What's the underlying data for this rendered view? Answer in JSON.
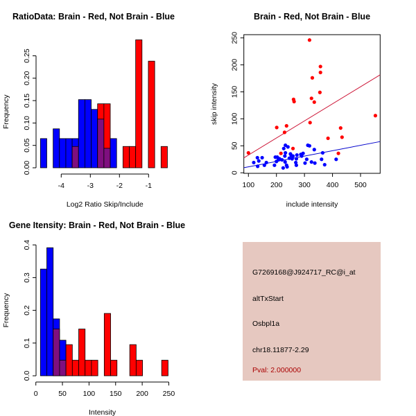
{
  "chart_data": [
    {
      "type": "bar",
      "subtype": "overlaid-histogram",
      "title": "RatioData: Brain - Red, Not Brain - Blue",
      "xlabel": "Log2 Ratio Skip/Include",
      "ylabel": "Frequency",
      "xticks": [
        "-4",
        "-3",
        "-2",
        "-1"
      ],
      "xtick_values": [
        -4,
        -3,
        -2,
        -1
      ],
      "yticks": [
        "0.00",
        "0.05",
        "0.10",
        "0.15",
        "0.20",
        "0.25"
      ],
      "ytick_values": [
        0,
        0.05,
        0.1,
        0.15,
        0.2,
        0.25
      ],
      "xlim": [
        -4.86,
        -0.15
      ],
      "bin_start": -4.714,
      "bin_width": 0.218,
      "series": [
        {
          "name": "Not Brain",
          "color": "#0000ff",
          "values": [
            0.0652,
            0,
            0.087,
            0.0652,
            0.0652,
            0.0652,
            0.1522,
            0.1522,
            0.1304,
            0.1087,
            0.0435,
            0.0652,
            0,
            0,
            0,
            0,
            0,
            0,
            0,
            0
          ]
        },
        {
          "name": "Brain",
          "color": "#ff0000",
          "values": [
            0,
            0,
            0,
            0,
            0,
            0.0476,
            0,
            0,
            0,
            0.1429,
            0.1429,
            0,
            0,
            0.0476,
            0.0476,
            0.2857,
            0,
            0.2381,
            0,
            0.0476
          ]
        }
      ],
      "overlap_color": "#7f0f7f"
    },
    {
      "type": "scatter",
      "title": "Brain - Red, Not Brain - Blue",
      "xlabel": "include intensity",
      "ylabel": "skip intensity",
      "xticks": [
        "100",
        "200",
        "300",
        "400",
        "500"
      ],
      "xtick_values": [
        100,
        200,
        300,
        400,
        500
      ],
      "yticks": [
        "0",
        "50",
        "100",
        "150",
        "200",
        "250"
      ],
      "ytick_values": [
        0,
        50,
        100,
        150,
        200,
        250
      ],
      "xlim": [
        83.7,
        570
      ],
      "ylim": [
        -1,
        256
      ],
      "series": [
        {
          "name": "Brain",
          "color": "#ff0000",
          "fit": {
            "intercept": 1.2,
            "slope": 0.3165,
            "color": "#cc1133"
          },
          "points": [
            [
              318,
              246
            ],
            [
              357,
              197
            ],
            [
              357,
              186
            ],
            [
              328,
              176
            ],
            [
              355,
              149
            ],
            [
              325,
              138
            ],
            [
              335,
              131
            ],
            [
              261,
              136
            ],
            [
              263,
              132
            ],
            [
              553,
              106
            ],
            [
              320,
              93
            ],
            [
              100,
              37
            ],
            [
              201,
              84
            ],
            [
              236,
              87
            ],
            [
              229,
              75
            ],
            [
              259,
              45
            ],
            [
              216,
              36
            ],
            [
              384,
              64
            ],
            [
              429,
              83
            ],
            [
              434,
              66
            ],
            [
              421,
              36
            ]
          ]
        },
        {
          "name": "Not Brain",
          "color": "#0000ff",
          "fit": {
            "intercept": 1.05,
            "slope": 0.0997,
            "color": "#0000cc"
          },
          "points": [
            [
              119,
              19
            ],
            [
              132,
              28
            ],
            [
              137,
              22
            ],
            [
              133,
              12
            ],
            [
              149,
              28
            ],
            [
              157,
              14
            ],
            [
              164,
              19
            ],
            [
              193,
              14
            ],
            [
              196,
              29
            ],
            [
              203,
              29
            ],
            [
              200,
              21
            ],
            [
              207,
              24
            ],
            [
              211,
              26
            ],
            [
              220,
              24
            ],
            [
              224,
              9
            ],
            [
              226,
              45
            ],
            [
              230,
              31
            ],
            [
              232,
              51
            ],
            [
              232,
              37
            ],
            [
              231,
              20
            ],
            [
              236,
              14
            ],
            [
              238,
              11
            ],
            [
              241,
              48
            ],
            [
              246,
              27
            ],
            [
              250,
              35
            ],
            [
              253,
              32
            ],
            [
              256,
              26
            ],
            [
              259,
              31
            ],
            [
              273,
              33
            ],
            [
              271,
              26
            ],
            [
              269,
              19
            ],
            [
              271,
              14
            ],
            [
              287,
              34
            ],
            [
              295,
              36
            ],
            [
              302,
              18
            ],
            [
              308,
              25
            ],
            [
              312,
              51
            ],
            [
              318,
              50
            ],
            [
              325,
              20
            ],
            [
              335,
              43
            ],
            [
              337,
              18
            ],
            [
              361,
              25
            ],
            [
              365,
              37
            ],
            [
              372,
              15
            ],
            [
              413,
              25
            ],
            [
              290,
              31
            ]
          ]
        }
      ]
    },
    {
      "type": "bar",
      "subtype": "overlaid-histogram",
      "title": "Gene Itensity: Brain - Red, Not Brain - Blue",
      "xlabel": "Intensity",
      "ylabel": "Frequency",
      "xticks": [
        "0",
        "50",
        "100",
        "150",
        "200",
        "250"
      ],
      "xtick_values": [
        0,
        50,
        100,
        150,
        200,
        250
      ],
      "yticks": [
        "0.0",
        "0.1",
        "0.2",
        "0.3",
        "0.4"
      ],
      "ytick_values": [
        0,
        0.1,
        0.2,
        0.3,
        0.4
      ],
      "bin_start": 8.6,
      "bin_width": 12,
      "series": [
        {
          "name": "Not Brain",
          "color": "#0000ff",
          "values": [
            0.3261,
            0.3913,
            0.1739,
            0.1087,
            0,
            0,
            0,
            0,
            0,
            0,
            0,
            0,
            0,
            0,
            0,
            0,
            0,
            0,
            0,
            0
          ]
        },
        {
          "name": "Brain",
          "color": "#ff0000",
          "values": [
            0,
            0,
            0.1429,
            0.0476,
            0.0952,
            0.0476,
            0.1429,
            0.0476,
            0.0476,
            0,
            0.1905,
            0.0476,
            0,
            0,
            0.0952,
            0.0476,
            0,
            0,
            0,
            0.0476
          ]
        }
      ],
      "overlap_color": "#7f0f7f"
    }
  ],
  "info_panel": {
    "background": "#e6c8c0",
    "probe_id": "G7269168@J924717_RC@i_at",
    "event_type": "altTxStart",
    "gene": "Osbpl1a",
    "location": "chr18.11877-2.29",
    "pval": "Pval: 2.000000",
    "pval_color": "#aa0000"
  }
}
